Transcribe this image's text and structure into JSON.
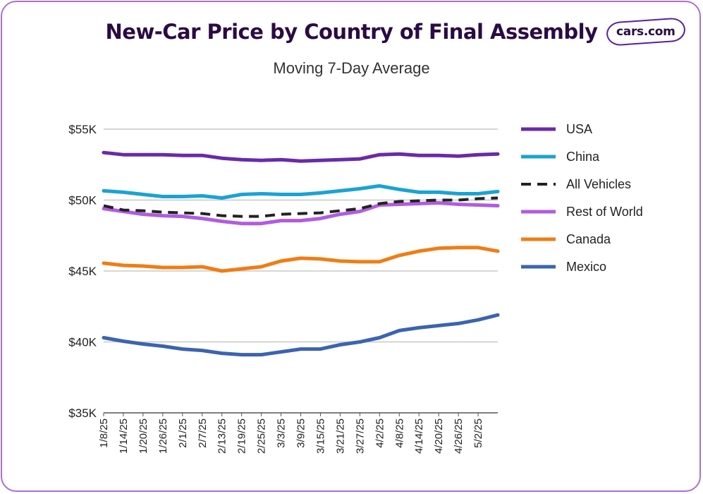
{
  "header": {
    "title": "New-Car Price by Country of Final Assembly",
    "subtitle": "Moving 7-Day Average",
    "logo_text": "cars.com"
  },
  "chart_data": {
    "type": "line",
    "title": "New-Car Price by Country of Final Assembly",
    "subtitle": "Moving 7-Day Average",
    "xlabel": "",
    "ylabel": "",
    "ylim": [
      35000,
      55000
    ],
    "y_ticks": [
      35000,
      40000,
      45000,
      50000,
      55000
    ],
    "y_tick_labels": [
      "$35K",
      "$40K",
      "$45K",
      "$50K",
      "$55K"
    ],
    "x_tick_labels": [
      "1/8/25",
      "1/14/25",
      "1/20/25",
      "1/26/25",
      "2/1/25",
      "2/7/25",
      "2/13/25",
      "2/19/25",
      "2/25/25",
      "3/3/25",
      "3/9/25",
      "3/15/25",
      "3/21/25",
      "3/27/25",
      "4/2/25",
      "4/8/25",
      "4/14/25",
      "4/20/25",
      "4/26/25",
      "5/2/25"
    ],
    "grid": "horizontal",
    "legend_position": "right",
    "x": [
      "1/8/25",
      "1/14/25",
      "1/20/25",
      "1/26/25",
      "2/1/25",
      "2/7/25",
      "2/13/25",
      "2/19/25",
      "2/25/25",
      "3/3/25",
      "3/9/25",
      "3/15/25",
      "3/21/25",
      "3/27/25",
      "4/2/25",
      "4/8/25",
      "4/14/25",
      "4/20/25",
      "4/26/25",
      "5/2/25",
      "5/8/25"
    ],
    "series": [
      {
        "name": "USA",
        "color": "#6a2aa8",
        "dash": false,
        "values": [
          53350,
          53200,
          53200,
          53200,
          53150,
          53150,
          52950,
          52850,
          52800,
          52850,
          52750,
          52800,
          52850,
          52900,
          53200,
          53250,
          53150,
          53150,
          53100,
          53200,
          53250
        ]
      },
      {
        "name": "China",
        "color": "#1aa3d4",
        "dash": false,
        "values": [
          50650,
          50550,
          50400,
          50250,
          50250,
          50300,
          50150,
          50400,
          50450,
          50400,
          50400,
          50500,
          50650,
          50800,
          51000,
          50750,
          50550,
          50550,
          50450,
          50450,
          50600
        ]
      },
      {
        "name": "All Vehicles",
        "color": "#222222",
        "dash": true,
        "values": [
          49600,
          49300,
          49250,
          49150,
          49100,
          49050,
          48900,
          48850,
          48850,
          49000,
          49050,
          49100,
          49250,
          49400,
          49750,
          49900,
          49950,
          50000,
          50000,
          50100,
          50150
        ]
      },
      {
        "name": "Rest of World",
        "color": "#b05ce0",
        "dash": false,
        "values": [
          49400,
          49200,
          49000,
          48900,
          48850,
          48700,
          48500,
          48350,
          48350,
          48550,
          48550,
          48700,
          49000,
          49200,
          49650,
          49700,
          49750,
          49800,
          49700,
          49650,
          49600
        ]
      },
      {
        "name": "Canada",
        "color": "#f07d14",
        "dash": false,
        "values": [
          45550,
          45400,
          45350,
          45250,
          45250,
          45300,
          45000,
          45150,
          45300,
          45700,
          45900,
          45850,
          45700,
          45650,
          45650,
          46100,
          46400,
          46600,
          46650,
          46650,
          46400
        ]
      },
      {
        "name": "Mexico",
        "color": "#3b64b0",
        "dash": false,
        "values": [
          40300,
          40050,
          39850,
          39700,
          39500,
          39400,
          39200,
          39100,
          39100,
          39300,
          39500,
          39500,
          39800,
          40000,
          40300,
          40800,
          41000,
          41150,
          41300,
          41550,
          41900
        ]
      }
    ]
  }
}
